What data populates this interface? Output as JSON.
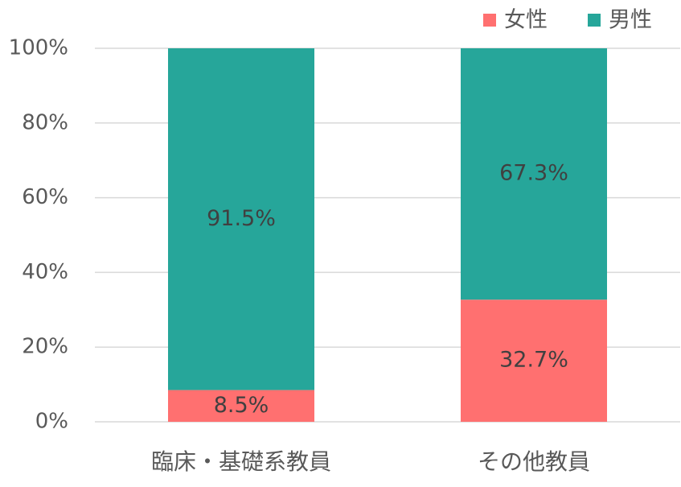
{
  "chart_data": {
    "type": "stacked-bar",
    "categories": [
      "臨床・基礎系教員",
      "その他教員"
    ],
    "series": [
      {
        "name": "女性",
        "color": "#ff7070",
        "values": [
          8.5,
          32.7
        ],
        "value_labels": [
          "8.5%",
          "32.7%"
        ]
      },
      {
        "name": "男性",
        "color": "#26a69a",
        "values": [
          91.5,
          67.3
        ],
        "value_labels": [
          "91.5%",
          "67.3%"
        ]
      }
    ],
    "ylim": [
      0,
      100
    ],
    "yticks": [
      {
        "value": 0,
        "label": "0%"
      },
      {
        "value": 20,
        "label": "20%"
      },
      {
        "value": 40,
        "label": "40%"
      },
      {
        "value": 60,
        "label": "60%"
      },
      {
        "value": 80,
        "label": "80%"
      },
      {
        "value": 100,
        "label": "100%"
      }
    ],
    "grid": true,
    "legend": "top-right"
  }
}
